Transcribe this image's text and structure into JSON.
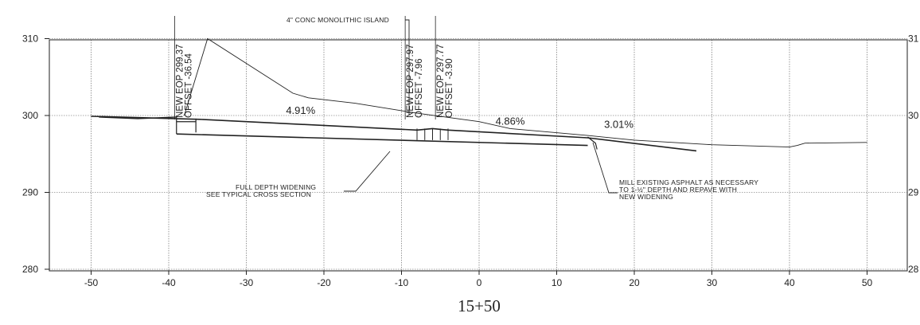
{
  "chart_data": {
    "type": "cross-section",
    "station": "15+50",
    "xlim": [
      -55,
      55
    ],
    "ylim": [
      280,
      310
    ],
    "x_ticks": [
      "-50",
      "-40",
      "-30",
      "-20",
      "-10",
      "0",
      "10",
      "20",
      "30",
      "40",
      "50"
    ],
    "x_tick_values": [
      -50,
      -40,
      -30,
      -20,
      -10,
      0,
      10,
      20,
      30,
      40,
      50
    ],
    "y_ticks_left": [
      "310",
      "300",
      "290",
      "280"
    ],
    "y_ticks_right": [
      "31",
      "30",
      "29",
      "28"
    ],
    "y_tick_values": [
      310,
      300,
      290,
      280
    ],
    "existing_ground": [
      [
        -38,
        300
      ],
      [
        -35,
        310
      ],
      [
        -24,
        302.9
      ],
      [
        -22,
        302.3
      ],
      [
        -16,
        301.6
      ],
      [
        -8,
        300.3
      ],
      [
        0,
        299.2
      ],
      [
        4,
        298.3
      ],
      [
        14,
        297.4
      ],
      [
        20,
        296.8
      ],
      [
        30,
        296.2
      ],
      [
        40,
        295.9
      ],
      [
        41,
        296.1
      ],
      [
        42,
        296.4
      ],
      [
        50,
        296.5
      ]
    ],
    "proposed_top": [
      [
        -50,
        299.9
      ],
      [
        -36,
        299.5
      ],
      [
        -8,
        298.1
      ],
      [
        -6,
        298.3
      ],
      [
        -4,
        298.1
      ],
      [
        14,
        297.1
      ],
      [
        28,
        295.4
      ]
    ],
    "proposed_bottom": [
      [
        -39,
        297.6
      ],
      [
        14,
        296.1
      ]
    ],
    "existing_pavement": [
      [
        -49,
        299.8
      ],
      [
        -44,
        299.6
      ],
      [
        -39,
        299.8
      ]
    ],
    "grades": [
      {
        "text": "4.91%",
        "x": -23,
        "y": 300.2
      },
      {
        "text": "4.86%",
        "x": 4,
        "y": 298.8
      },
      {
        "text": "3.01%",
        "x": 18,
        "y": 298.4
      }
    ],
    "vertical_labels": [
      {
        "lines": [
          "NEW EOP 299.37",
          "OFFSET -36.54"
        ],
        "x": -38.2
      },
      {
        "lines": [
          "NEW EOP 297.97",
          "OFFSET -7.96"
        ],
        "x": -8.5
      },
      {
        "lines": [
          "NEW EOP 297.77",
          "OFFSET -3.90"
        ],
        "x": -4.6
      }
    ],
    "annotations": {
      "island": "4\" CONC MONOLITHIC ISLAND",
      "full_depth_1": "FULL DEPTH WIDENING",
      "full_depth_2": "SEE TYPICAL CROSS SECTION",
      "mill_1": "MILL EXISTING ASPHALT AS NECESSARY",
      "mill_2": "TO 1-½\" DEPTH AND REPAVE WITH",
      "mill_3": "NEW WIDENING"
    }
  }
}
